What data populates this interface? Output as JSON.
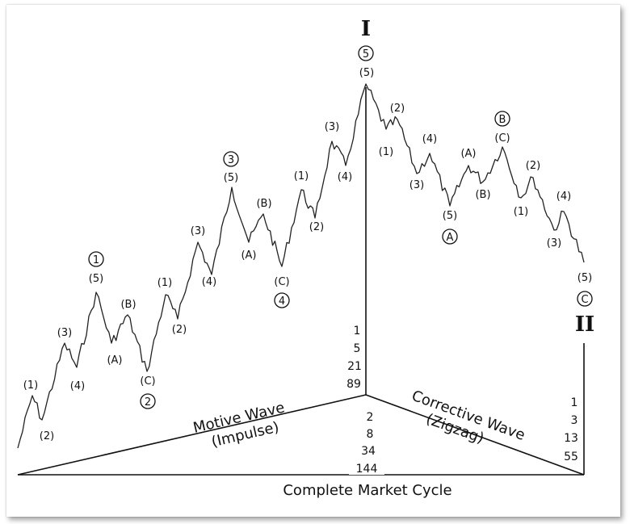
{
  "cycle": {
    "title": "Complete Market Cycle",
    "motive": [
      "Motive Wave",
      "(Impulse)"
    ],
    "corrective": [
      "Corrective Wave",
      "(Zigzag)"
    ],
    "top_roman": "I",
    "bottom_roman": "II",
    "top_counts": [
      "1",
      "5",
      "21",
      "89"
    ],
    "mid_counts": [
      "2",
      "8",
      "34",
      "144"
    ],
    "right_counts": [
      "1",
      "3",
      "13",
      "55"
    ]
  },
  "labels": {
    "impulse": [
      "(1)",
      "(2)",
      "(3)",
      "(4)",
      "(5)",
      "(A)",
      "(B)",
      "(C)",
      "(1)",
      "(2)",
      "(3)",
      "(4)",
      "(5)",
      "(A)",
      "(B)",
      "(C)",
      "(1)",
      "(2)",
      "(3)",
      "(4)",
      "(5)"
    ],
    "corrective": [
      "(1)",
      "(2)",
      "(3)",
      "(4)",
      "(5)",
      "(A)",
      "(B)",
      "(C)",
      "(1)",
      "(2)",
      "(3)",
      "(4)",
      "(5)"
    ],
    "circled": [
      "1",
      "2",
      "3",
      "4",
      "5",
      "A",
      "B",
      "C"
    ]
  }
}
